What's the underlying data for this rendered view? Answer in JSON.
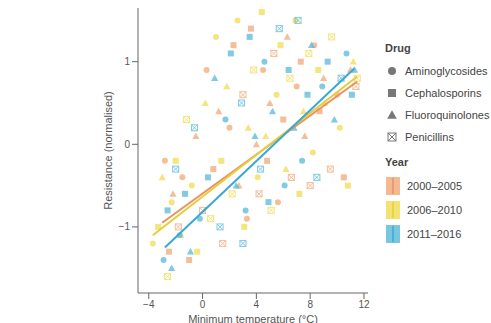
{
  "chart_data": {
    "type": "scatter",
    "x_label": "Minimum temperature (°C)",
    "y_label": "Resistance (normalised)",
    "xlim": [
      -4.8,
      12.3
    ],
    "ylim": [
      -1.8,
      1.65
    ],
    "xticks": [
      {
        "value": -4,
        "label": "−4"
      },
      0,
      4,
      8,
      12
    ],
    "yticks": [
      {
        "value": -1,
        "label": "−1"
      },
      0,
      1
    ],
    "grid": false,
    "legend": "right",
    "drug_title": "Drug",
    "year_title": "Year",
    "drugs": [
      {
        "name": "Aminoglycosides",
        "marker": "circle"
      },
      {
        "name": "Cephalosporins",
        "marker": "square"
      },
      {
        "name": "Fluoroquinolones",
        "marker": "triangle"
      },
      {
        "name": "Penicillins",
        "marker": "square_cross"
      }
    ],
    "series": [
      {
        "name": "2000–2005",
        "color": "#f0a878",
        "line_color": "#e8935e",
        "x": [
          -2.8,
          -2.5,
          -2.2,
          -1.8,
          -1.5,
          -1.0,
          -0.5,
          0.0,
          0.3,
          0.8,
          1.2,
          1.5,
          2.0,
          2.3,
          2.7,
          3.0,
          3.3,
          3.6,
          4.0,
          4.2,
          4.5,
          4.8,
          5.0,
          5.3,
          5.6,
          6.0,
          6.3,
          6.6,
          7.0,
          7.3,
          7.6,
          8.0,
          8.3,
          8.7,
          9.0,
          9.5,
          10.0,
          10.5,
          11.0,
          11.4
        ],
        "y": [
          -0.2,
          -1.3,
          -0.6,
          -1.0,
          -0.4,
          -1.4,
          0.1,
          -0.8,
          0.9,
          -0.3,
          0.4,
          -1.2,
          0.2,
          1.2,
          -0.5,
          0.6,
          -0.9,
          1.4,
          0.0,
          -0.6,
          0.9,
          -0.2,
          0.5,
          1.1,
          -0.7,
          0.3,
          1.3,
          -0.4,
          0.7,
          1.0,
          0.1,
          -0.5,
          1.2,
          0.4,
          0.8,
          -0.3,
          0.6,
          -0.4,
          0.9,
          0.7
        ],
        "drug": [
          "Aminoglycosides",
          "Cephalosporins",
          "Fluoroquinolones",
          "Penicillins",
          "Aminoglycosides",
          "Cephalosporins",
          "Fluoroquinolones",
          "Penicillins",
          "Aminoglycosides",
          "Cephalosporins",
          "Fluoroquinolones",
          "Penicillins",
          "Aminoglycosides",
          "Cephalosporins",
          "Fluoroquinolones",
          "Penicillins",
          "Aminoglycosides",
          "Cephalosporins",
          "Fluoroquinolones",
          "Penicillins",
          "Aminoglycosides",
          "Cephalosporins",
          "Fluoroquinolones",
          "Penicillins",
          "Aminoglycosides",
          "Cephalosporins",
          "Fluoroquinolones",
          "Penicillins",
          "Aminoglycosides",
          "Cephalosporins",
          "Fluoroquinolones",
          "Penicillins",
          "Aminoglycosides",
          "Cephalosporins",
          "Fluoroquinolones",
          "Penicillins",
          "Aminoglycosides",
          "Cephalosporins",
          "Fluoroquinolones",
          "Penicillins"
        ],
        "trend": {
          "x": [
            -3.0,
            11.5
          ],
          "y": [
            -0.95,
            0.76
          ]
        }
      },
      {
        "name": "2006–2010",
        "color": "#f0dc50",
        "line_color": "#e8cc3a",
        "x": [
          -3.7,
          -3.3,
          -3.0,
          -2.6,
          -2.3,
          -2.0,
          -1.6,
          -1.2,
          -0.8,
          -0.4,
          0.2,
          0.6,
          1.0,
          1.4,
          1.8,
          2.2,
          2.6,
          3.1,
          3.4,
          3.8,
          4.1,
          4.4,
          4.7,
          5.1,
          5.5,
          5.8,
          6.2,
          6.5,
          6.9,
          7.2,
          7.5,
          7.9,
          8.2,
          8.6,
          9.1,
          9.6,
          10.2,
          10.8,
          11.2,
          11.5
        ],
        "y": [
          -1.2,
          -1.0,
          -0.4,
          -1.6,
          -0.7,
          -0.2,
          -1.1,
          0.3,
          -0.5,
          -1.3,
          0.5,
          -0.9,
          1.3,
          -0.2,
          0.7,
          -0.6,
          1.5,
          -1.0,
          0.2,
          0.9,
          -0.4,
          1.6,
          0.1,
          -0.8,
          0.6,
          1.2,
          -0.3,
          0.8,
          1.5,
          -0.6,
          0.4,
          1.1,
          -0.1,
          0.9,
          0.5,
          1.3,
          0.2,
          -0.5,
          1.0,
          0.8
        ],
        "drug": [
          "Aminoglycosides",
          "Cephalosporins",
          "Fluoroquinolones",
          "Penicillins",
          "Aminoglycosides",
          "Cephalosporins",
          "Fluoroquinolones",
          "Penicillins",
          "Aminoglycosides",
          "Cephalosporins",
          "Fluoroquinolones",
          "Penicillins",
          "Aminoglycosides",
          "Cephalosporins",
          "Fluoroquinolones",
          "Penicillins",
          "Aminoglycosides",
          "Cephalosporins",
          "Fluoroquinolones",
          "Penicillins",
          "Aminoglycosides",
          "Cephalosporins",
          "Fluoroquinolones",
          "Penicillins",
          "Aminoglycosides",
          "Cephalosporins",
          "Fluoroquinolones",
          "Penicillins",
          "Aminoglycosides",
          "Cephalosporins",
          "Fluoroquinolones",
          "Penicillins",
          "Aminoglycosides",
          "Cephalosporins",
          "Fluoroquinolones",
          "Penicillins",
          "Aminoglycosides",
          "Cephalosporins",
          "Fluoroquinolones",
          "Penicillins"
        ],
        "trend": {
          "x": [
            -3.7,
            11.5
          ],
          "y": [
            -1.1,
            0.82
          ]
        }
      },
      {
        "name": "2011–2016",
        "color": "#58b8d8",
        "line_color": "#3aa8d4",
        "x": [
          -2.9,
          -2.6,
          -2.3,
          -2.0,
          -1.7,
          -1.3,
          -0.9,
          -0.6,
          -0.2,
          0.4,
          0.9,
          1.3,
          1.7,
          2.1,
          2.5,
          2.9,
          3.2,
          3.5,
          3.9,
          4.3,
          4.6,
          4.9,
          5.2,
          5.7,
          6.1,
          6.4,
          6.8,
          7.1,
          7.4,
          7.8,
          8.1,
          8.5,
          8.9,
          9.3,
          9.8,
          10.3,
          10.7,
          11.1,
          11.3,
          3.0
        ],
        "y": [
          -1.4,
          -0.8,
          -1.5,
          -0.3,
          -1.1,
          -0.6,
          -1.3,
          0.2,
          -0.9,
          -0.4,
          0.8,
          -1.0,
          0.3,
          1.1,
          -0.5,
          0.5,
          -0.8,
          1.3,
          0.1,
          -0.3,
          1.0,
          -0.7,
          0.4,
          1.4,
          -0.5,
          0.9,
          0.2,
          1.5,
          -0.2,
          0.6,
          1.2,
          -0.4,
          0.7,
          1.0,
          0.3,
          0.8,
          1.1,
          0.6,
          0.9,
          -1.2
        ],
        "drug": [
          "Aminoglycosides",
          "Cephalosporins",
          "Fluoroquinolones",
          "Penicillins",
          "Aminoglycosides",
          "Cephalosporins",
          "Fluoroquinolones",
          "Penicillins",
          "Aminoglycosides",
          "Cephalosporins",
          "Fluoroquinolones",
          "Penicillins",
          "Aminoglycosides",
          "Cephalosporins",
          "Fluoroquinolones",
          "Penicillins",
          "Aminoglycosides",
          "Cephalosporins",
          "Fluoroquinolones",
          "Penicillins",
          "Aminoglycosides",
          "Cephalosporins",
          "Fluoroquinolones",
          "Penicillins",
          "Aminoglycosides",
          "Cephalosporins",
          "Fluoroquinolones",
          "Penicillins",
          "Aminoglycosides",
          "Cephalosporins",
          "Fluoroquinolones",
          "Penicillins",
          "Aminoglycosides",
          "Cephalosporins",
          "Fluoroquinolones",
          "Penicillins",
          "Aminoglycosides",
          "Cephalosporins",
          "Fluoroquinolones",
          "Penicillins"
        ],
        "trend": {
          "x": [
            -2.8,
            11.3
          ],
          "y": [
            -1.25,
            0.92
          ]
        }
      }
    ]
  }
}
